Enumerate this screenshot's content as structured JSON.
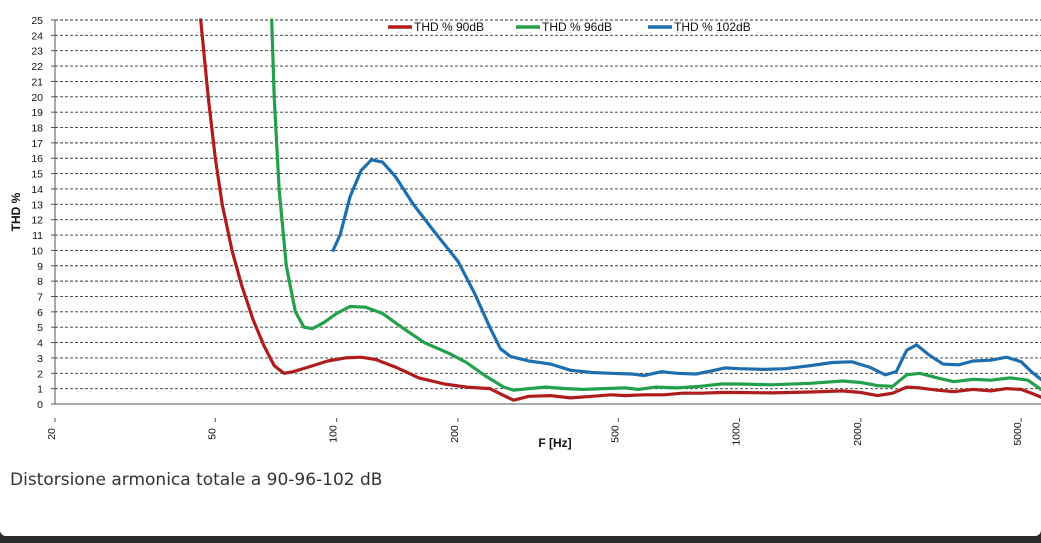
{
  "caption": "Distorsione armonica totale a 90-96-102 dB",
  "chart_data": {
    "type": "line",
    "xlabel": "F [Hz]",
    "ylabel": "THD %",
    "x_scale": "log",
    "xlim": [
      20,
      5600
    ],
    "ylim": [
      0,
      25
    ],
    "x_ticks": [
      20,
      50,
      100,
      200,
      500,
      1000,
      2000,
      5000
    ],
    "y_ticks": [
      0,
      1,
      2,
      3,
      4,
      5,
      6,
      7,
      8,
      9,
      10,
      11,
      12,
      13,
      14,
      15,
      16,
      17,
      18,
      19,
      20,
      21,
      22,
      23,
      24,
      25
    ],
    "grid": true,
    "legend_position": "top",
    "series": [
      {
        "name": "THD % 90dB",
        "color": "#b01c1c",
        "points": [
          [
            46,
            25
          ],
          [
            48,
            20
          ],
          [
            50,
            16
          ],
          [
            52,
            13
          ],
          [
            55,
            10
          ],
          [
            58,
            7.8
          ],
          [
            62,
            5.5
          ],
          [
            66,
            3.8
          ],
          [
            70,
            2.5
          ],
          [
            74,
            2.0
          ],
          [
            78,
            2.1
          ],
          [
            85,
            2.4
          ],
          [
            95,
            2.8
          ],
          [
            105,
            3.0
          ],
          [
            115,
            3.05
          ],
          [
            125,
            2.9
          ],
          [
            140,
            2.4
          ],
          [
            160,
            1.7
          ],
          [
            185,
            1.3
          ],
          [
            210,
            1.1
          ],
          [
            240,
            1.0
          ],
          [
            260,
            0.55
          ],
          [
            275,
            0.25
          ],
          [
            300,
            0.5
          ],
          [
            340,
            0.55
          ],
          [
            380,
            0.4
          ],
          [
            430,
            0.5
          ],
          [
            480,
            0.6
          ],
          [
            520,
            0.55
          ],
          [
            580,
            0.6
          ],
          [
            650,
            0.6
          ],
          [
            720,
            0.7
          ],
          [
            800,
            0.7
          ],
          [
            900,
            0.75
          ],
          [
            1000,
            0.75
          ],
          [
            1200,
            0.72
          ],
          [
            1500,
            0.78
          ],
          [
            1800,
            0.85
          ],
          [
            2000,
            0.75
          ],
          [
            2200,
            0.55
          ],
          [
            2400,
            0.7
          ],
          [
            2600,
            1.1
          ],
          [
            2800,
            1.05
          ],
          [
            3100,
            0.9
          ],
          [
            3400,
            0.8
          ],
          [
            3800,
            0.95
          ],
          [
            4200,
            0.85
          ],
          [
            4600,
            1.0
          ],
          [
            5000,
            0.95
          ],
          [
            5300,
            0.7
          ],
          [
            5600,
            0.45
          ]
        ]
      },
      {
        "name": "THD % 96dB",
        "color": "#22a04a",
        "points": [
          [
            69,
            25
          ],
          [
            70,
            20
          ],
          [
            72,
            14
          ],
          [
            75,
            9
          ],
          [
            79,
            6
          ],
          [
            83,
            5.0
          ],
          [
            87,
            4.9
          ],
          [
            93,
            5.3
          ],
          [
            100,
            5.9
          ],
          [
            108,
            6.35
          ],
          [
            118,
            6.3
          ],
          [
            130,
            5.9
          ],
          [
            145,
            5.0
          ],
          [
            165,
            4.0
          ],
          [
            190,
            3.3
          ],
          [
            210,
            2.7
          ],
          [
            235,
            1.8
          ],
          [
            260,
            1.1
          ],
          [
            275,
            0.9
          ],
          [
            300,
            1.0
          ],
          [
            330,
            1.1
          ],
          [
            370,
            1.0
          ],
          [
            410,
            0.95
          ],
          [
            460,
            1.0
          ],
          [
            520,
            1.05
          ],
          [
            560,
            0.95
          ],
          [
            620,
            1.1
          ],
          [
            700,
            1.05
          ],
          [
            800,
            1.15
          ],
          [
            900,
            1.3
          ],
          [
            1000,
            1.3
          ],
          [
            1200,
            1.25
          ],
          [
            1500,
            1.35
          ],
          [
            1800,
            1.5
          ],
          [
            2000,
            1.4
          ],
          [
            2200,
            1.2
          ],
          [
            2400,
            1.15
          ],
          [
            2600,
            1.9
          ],
          [
            2800,
            2.0
          ],
          [
            3100,
            1.7
          ],
          [
            3400,
            1.45
          ],
          [
            3800,
            1.6
          ],
          [
            4200,
            1.55
          ],
          [
            4700,
            1.7
          ],
          [
            5200,
            1.55
          ],
          [
            5600,
            0.95
          ]
        ]
      },
      {
        "name": "THD % 102dB",
        "color": "#1f6fae",
        "points": [
          [
            98,
            10
          ],
          [
            102,
            11
          ],
          [
            108,
            13.5
          ],
          [
            115,
            15.2
          ],
          [
            122,
            15.9
          ],
          [
            130,
            15.75
          ],
          [
            140,
            14.8
          ],
          [
            155,
            13.0
          ],
          [
            175,
            11.2
          ],
          [
            200,
            9.3
          ],
          [
            220,
            7.2
          ],
          [
            240,
            5.0
          ],
          [
            255,
            3.6
          ],
          [
            270,
            3.1
          ],
          [
            300,
            2.8
          ],
          [
            340,
            2.6
          ],
          [
            380,
            2.2
          ],
          [
            430,
            2.05
          ],
          [
            480,
            2.0
          ],
          [
            540,
            1.95
          ],
          [
            580,
            1.85
          ],
          [
            640,
            2.1
          ],
          [
            700,
            2.0
          ],
          [
            780,
            1.95
          ],
          [
            850,
            2.15
          ],
          [
            920,
            2.35
          ],
          [
            1000,
            2.3
          ],
          [
            1150,
            2.25
          ],
          [
            1300,
            2.3
          ],
          [
            1500,
            2.5
          ],
          [
            1700,
            2.7
          ],
          [
            1900,
            2.75
          ],
          [
            2100,
            2.4
          ],
          [
            2300,
            1.9
          ],
          [
            2450,
            2.1
          ],
          [
            2600,
            3.5
          ],
          [
            2750,
            3.85
          ],
          [
            2950,
            3.2
          ],
          [
            3200,
            2.6
          ],
          [
            3500,
            2.55
          ],
          [
            3800,
            2.8
          ],
          [
            4200,
            2.85
          ],
          [
            4600,
            3.05
          ],
          [
            5000,
            2.75
          ],
          [
            5300,
            2.1
          ],
          [
            5600,
            1.6
          ]
        ]
      }
    ]
  }
}
